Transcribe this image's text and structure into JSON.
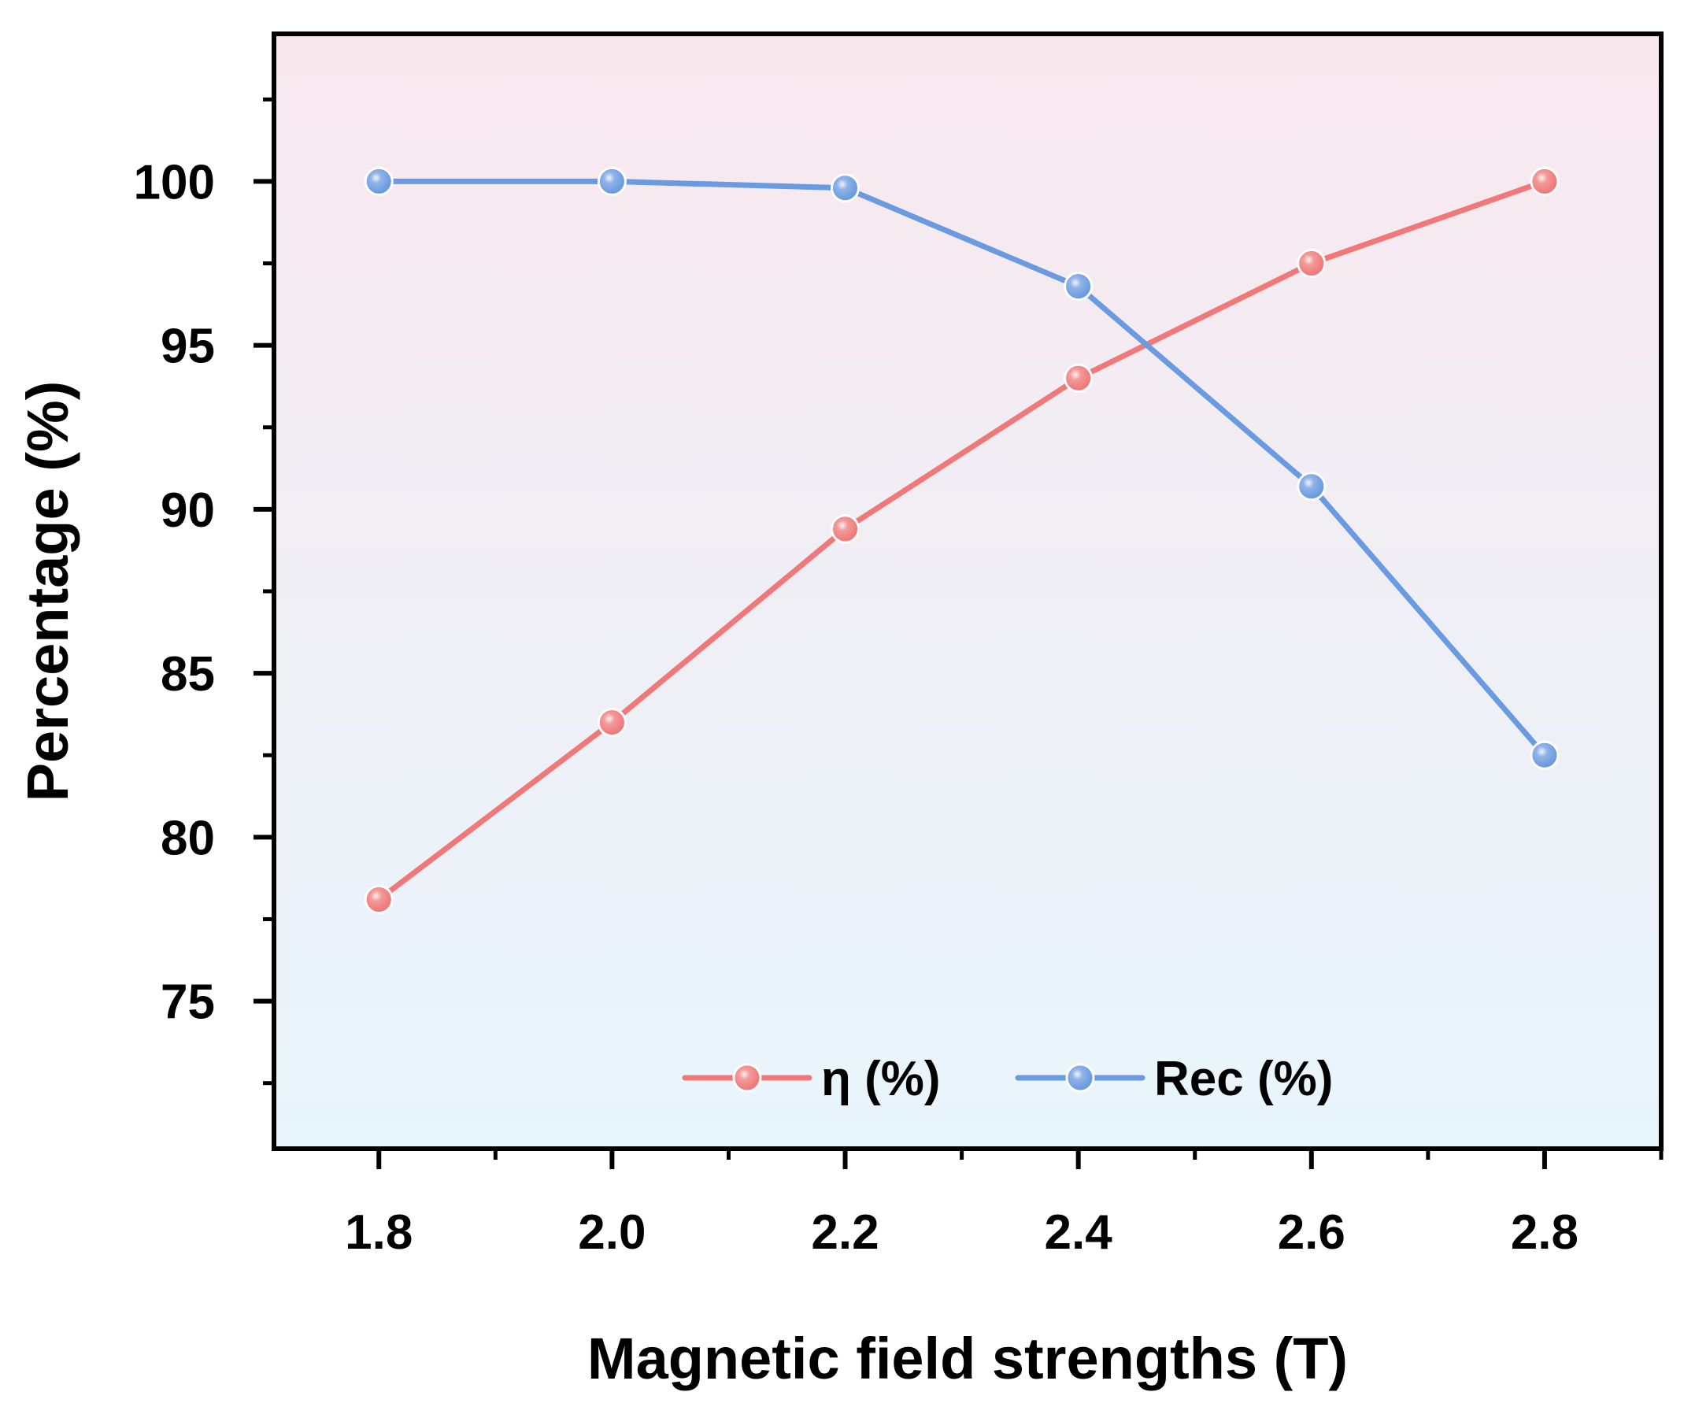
{
  "chart_data": {
    "type": "line",
    "title": "",
    "xlabel": "Magnetic field strengths (T)",
    "ylabel": "Percentage (%)",
    "x": [
      1.8,
      2.0,
      2.2,
      2.4,
      2.6,
      2.8
    ],
    "x_tick_labels": [
      "1.8",
      "2.0",
      "2.2",
      "2.4",
      "2.6",
      "2.8"
    ],
    "y_ticks": [
      75,
      80,
      85,
      90,
      95,
      100
    ],
    "y_tick_labels": [
      "75",
      "80",
      "85",
      "90",
      "95",
      "100"
    ],
    "xlim": [
      1.71,
      2.9
    ],
    "ylim": [
      70.5,
      104.5
    ],
    "grid": false,
    "legend_position": "bottom-center",
    "series": [
      {
        "name": "η (%)",
        "color": "#F07878",
        "values": [
          78.1,
          83.5,
          89.4,
          94.0,
          97.5,
          100.0
        ]
      },
      {
        "name": "Rec (%)",
        "color": "#6A9AE0",
        "values": [
          100.0,
          100.0,
          99.8,
          96.8,
          90.7,
          82.5
        ]
      }
    ],
    "background_gradient": [
      "#F8E8EE",
      "#E8F5FC"
    ]
  }
}
